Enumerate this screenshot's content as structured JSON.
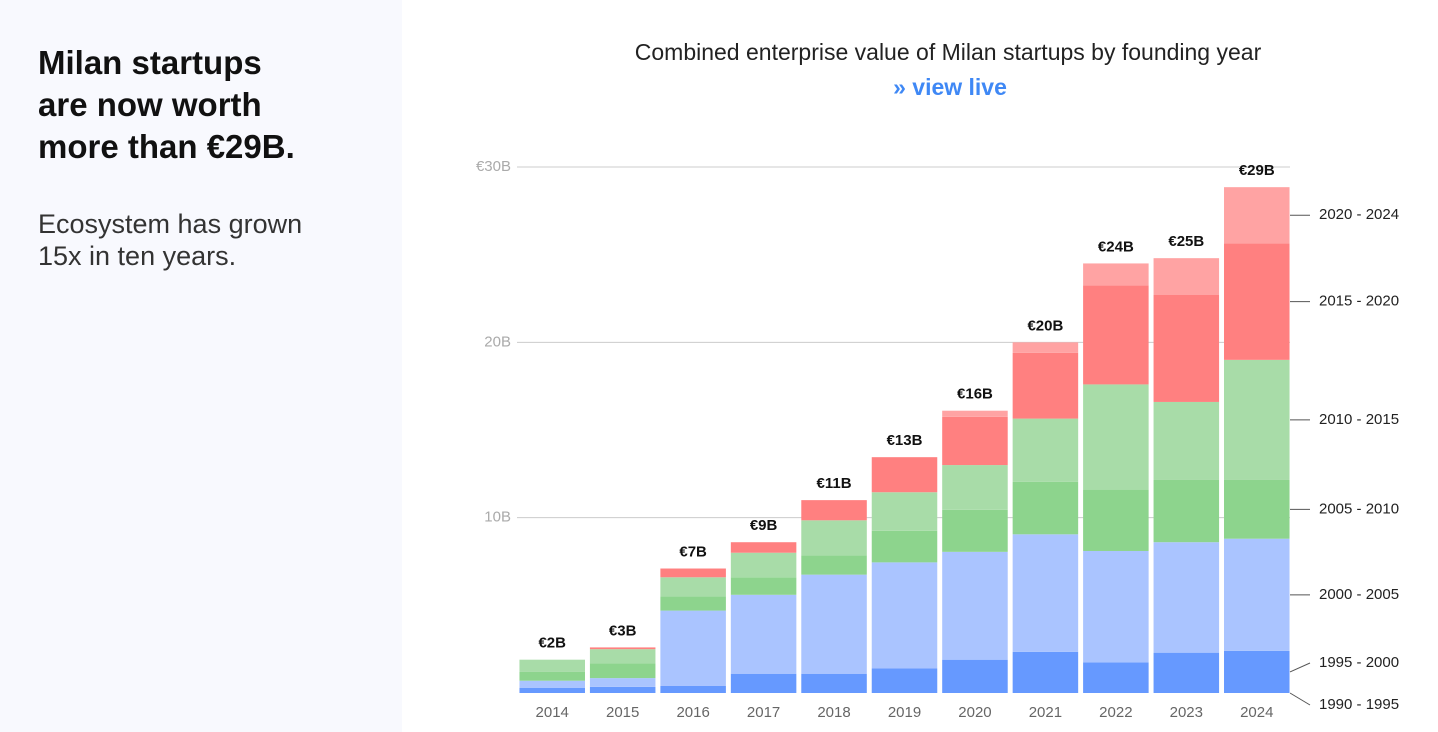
{
  "headline": [
    "Milan startups",
    "are now worth",
    "more than €29B."
  ],
  "subheadline": [
    "Ecosystem has grown",
    "15x in ten years."
  ],
  "chart_data": {
    "type": "stacked_bar",
    "title": "Combined enterprise value of Milan startups by founding year",
    "link": "»  view live",
    "categories": [
      "2014",
      "2015",
      "2016",
      "2017",
      "2018",
      "2019",
      "2020",
      "2021",
      "2022",
      "2023",
      "2024"
    ],
    "series": [
      {
        "name": "1990 - 1995",
        "color": "#4f7fee",
        "values": [
          0,
          0,
          0,
          0,
          0,
          0,
          0,
          0,
          0,
          0,
          0
        ]
      },
      {
        "name": "1995 - 2000",
        "color": "#6699ff",
        "values": [
          0.3,
          0.35,
          0.4,
          1.1,
          1.1,
          1.4,
          1.9,
          2.35,
          1.75,
          2.3,
          2.4
        ]
      },
      {
        "name": "2000 - 2005",
        "color": "#aac4ff",
        "values": [
          0.4,
          0.5,
          4.3,
          4.5,
          5.65,
          6.05,
          6.15,
          6.7,
          6.35,
          6.3,
          6.4
        ]
      },
      {
        "name": "2005 - 2010",
        "color": "#8dd48d",
        "values": [
          0.5,
          0.85,
          0.8,
          1.0,
          1.1,
          1.8,
          2.4,
          3.0,
          3.5,
          3.55,
          3.35
        ]
      },
      {
        "name": "2010 - 2015",
        "color": "#a8dca8",
        "values": [
          0.7,
          0.8,
          1.1,
          1.4,
          2.0,
          2.2,
          2.55,
          3.6,
          6.0,
          4.45,
          6.85
        ]
      },
      {
        "name": "2015 - 2020",
        "color": "#ff8080",
        "values": [
          0,
          0.1,
          0.5,
          0.6,
          1.15,
          2.0,
          2.75,
          3.75,
          5.65,
          6.1,
          6.65
        ]
      },
      {
        "name": "2020 - 2024",
        "color": "#ffa3a3",
        "values": [
          0,
          0,
          0,
          0,
          0,
          0,
          0.35,
          0.6,
          1.25,
          2.1,
          3.2
        ]
      }
    ],
    "totals": {
      "values": [
        2,
        3,
        7,
        9,
        11,
        13,
        16,
        20,
        24,
        25,
        29
      ],
      "value_labels": [
        "€2B",
        "€3B",
        "€7B",
        "€9B",
        "€11B",
        "€13B",
        "€16B",
        "€20B",
        "€24B",
        "€25B",
        "€29B"
      ]
    },
    "ylim": [
      0,
      30
    ],
    "yticks": [
      {
        "value": 10,
        "label": "10B"
      },
      {
        "value": 20,
        "label": "20B"
      },
      {
        "value": 30,
        "label": "€30B"
      }
    ],
    "grid": true
  }
}
